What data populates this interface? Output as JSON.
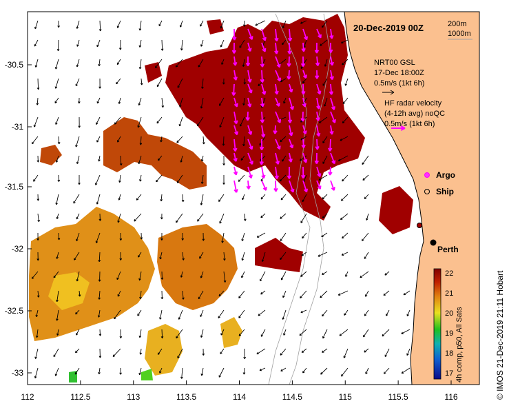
{
  "map": {
    "title": "20-Dec-2019 00Z",
    "depth_contours": [
      "200m",
      "1000m"
    ],
    "x_axis_ticks": [
      "112",
      "112.5",
      "113",
      "113.5",
      "114",
      "114.5",
      "115",
      "115.5",
      "116"
    ],
    "y_axis_ticks": [
      "-30.5",
      "-31",
      "-31.5",
      "-32",
      "-32.5",
      "-33"
    ],
    "legend": {
      "gsl_line1": "NRT00 GSL",
      "gsl_line2": "17-Dec 18:00Z",
      "gsl_line3": "0.5m/s (1kt 6h)",
      "radar_line1": "HF radar velocity",
      "radar_line2": "(4-12h avg) noQC",
      "radar_line3": "0.5m/s (1kt 6h)",
      "argo_label": "Argo",
      "ship_label": "Ship",
      "argo_color": "#ff33ff",
      "ship_color": "#000000"
    },
    "city_label": "Perth",
    "colorbar": {
      "ticks": [
        "22",
        "21",
        "20",
        "19",
        "18",
        "17"
      ],
      "label": "4h comp, p50, All Sats"
    },
    "credit": "© IMOS 21-Dec-2019 21:11 Hobart",
    "colors": {
      "land": "#fbc08f",
      "sst_warm": "#a00000",
      "sst_mid": "#d8650a",
      "sst_cool": "#e8c020",
      "radar_arrow": "#ff00ff",
      "gsl_arrow": "#000000"
    }
  }
}
